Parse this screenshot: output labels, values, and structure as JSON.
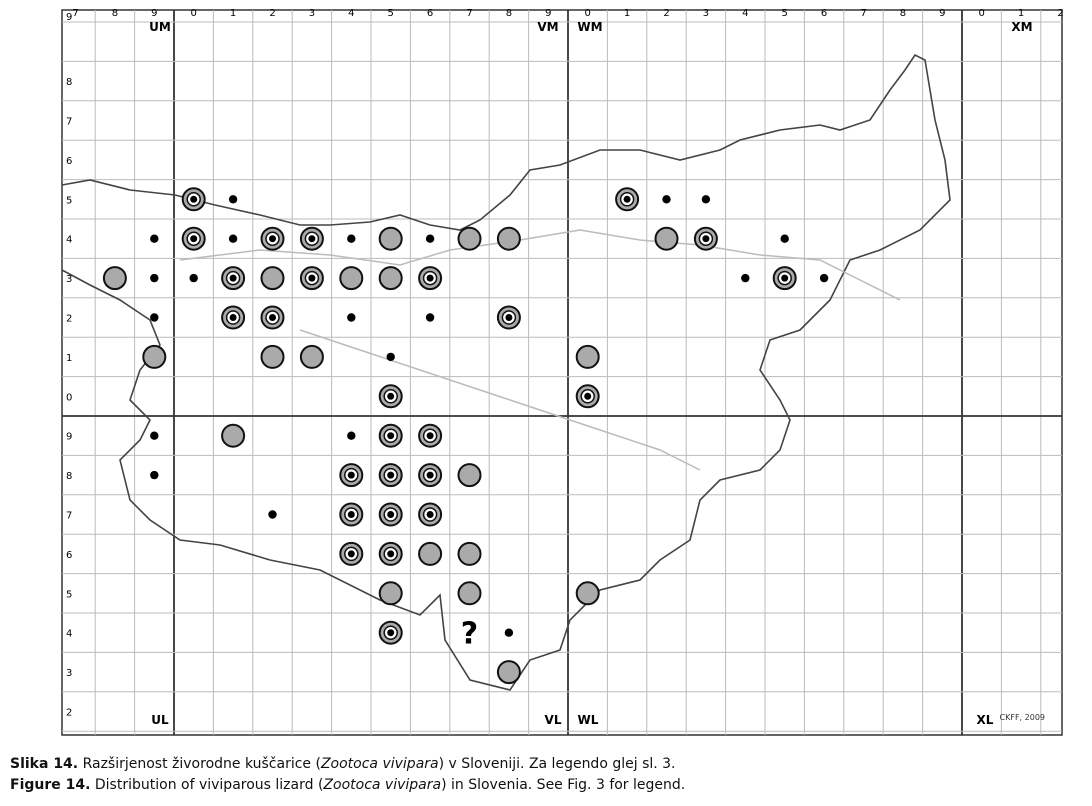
{
  "map": {
    "column_labels": [
      "7",
      "8",
      "9",
      "0",
      "1",
      "2",
      "3",
      "4",
      "5",
      "6",
      "7",
      "8",
      "9",
      "0",
      "1",
      "2",
      "3",
      "4",
      "5",
      "6",
      "7",
      "8",
      "9",
      "0",
      "1",
      "2"
    ],
    "row_labels": [
      "9",
      "8",
      "7",
      "6",
      "5",
      "4",
      "3",
      "2",
      "1",
      "0",
      "9",
      "8",
      "7",
      "6",
      "5",
      "4",
      "3",
      "2"
    ],
    "zones": {
      "top": [
        "UM",
        "VM",
        "WM",
        "XM"
      ],
      "bottom": [
        "UL",
        "VL",
        "WL",
        "XL"
      ]
    },
    "credit": "CKFF, 2009",
    "uncertain_marker": "?"
  },
  "captions": [
    {
      "label": "Slika 14.",
      "before": " Razširjenost živorodne kuščarice (",
      "species": "Zootoca vivipara",
      "after": ") v Sloveniji. Za legendo glej sl. 3."
    },
    {
      "label": "Figure 14.",
      "before": " Distribution of viviparous lizard (",
      "species": "Zootoca vivipara",
      "after": ") in Slovenia. See Fig. 3 for legend."
    }
  ]
}
